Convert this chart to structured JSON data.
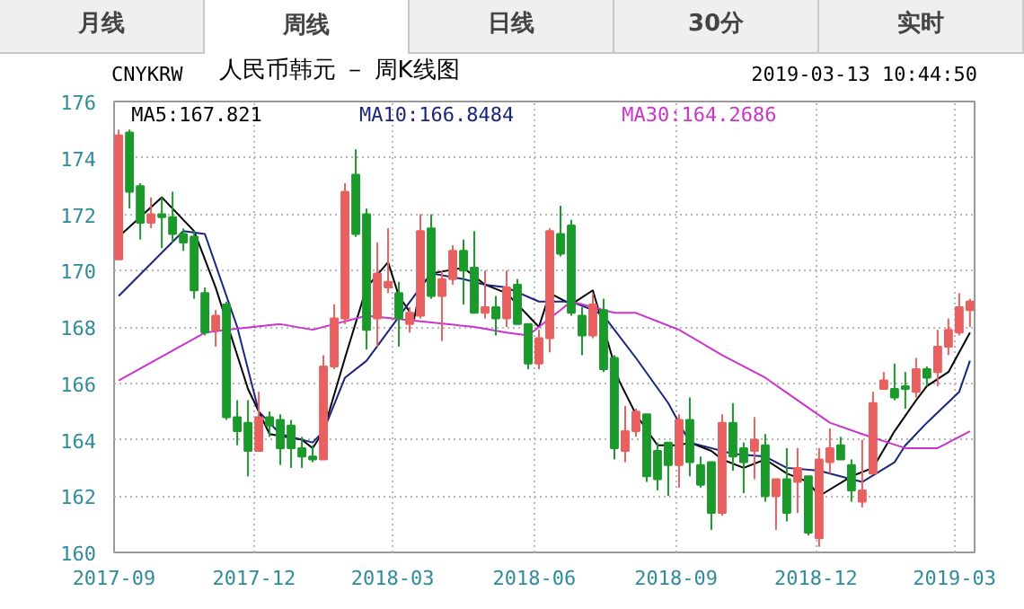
{
  "chart_data": {
    "type": "candlestick",
    "title": "人民币韩元 － 周K线图",
    "subtitle": "CNYKRW",
    "annotations": [
      "2019-03-13 10:44:50",
      "月线",
      "周线",
      "日线",
      "30分",
      "实时"
    ],
    "x": [
      "2017-09-04",
      "2017-09-11",
      "2017-09-18",
      "2017-09-25",
      "2017-10-02",
      "2017-10-09",
      "2017-10-16",
      "2017-10-23",
      "2017-10-30",
      "2017-11-06",
      "2017-11-13",
      "2017-11-20",
      "2017-11-27",
      "2017-12-04",
      "2017-12-11",
      "2017-12-18",
      "2017-12-25",
      "2018-01-01",
      "2018-01-08",
      "2018-01-15",
      "2018-01-22",
      "2018-01-29",
      "2018-02-05",
      "2018-02-12",
      "2018-02-19",
      "2018-02-26",
      "2018-03-05",
      "2018-03-12",
      "2018-03-19",
      "2018-03-26",
      "2018-04-02",
      "2018-04-09",
      "2018-04-16",
      "2018-04-23",
      "2018-04-30",
      "2018-05-07",
      "2018-05-14",
      "2018-05-21",
      "2018-05-28",
      "2018-06-04",
      "2018-06-11",
      "2018-06-18",
      "2018-06-25",
      "2018-07-02",
      "2018-07-09",
      "2018-07-16",
      "2018-07-23",
      "2018-07-30",
      "2018-08-06",
      "2018-08-13",
      "2018-08-20",
      "2018-08-27",
      "2018-09-03",
      "2018-09-10",
      "2018-09-17",
      "2018-09-24",
      "2018-10-01",
      "2018-10-08",
      "2018-10-15",
      "2018-10-22",
      "2018-10-29",
      "2018-11-05",
      "2018-11-12",
      "2018-11-19",
      "2018-11-26",
      "2018-12-03",
      "2018-12-10",
      "2018-12-17",
      "2018-12-24",
      "2018-12-31",
      "2019-01-07",
      "2019-01-14",
      "2019-01-21",
      "2019-01-28",
      "2019-02-04",
      "2019-02-11",
      "2019-02-18",
      "2019-02-25",
      "2019-03-04",
      "2019-03-11"
    ],
    "ohlc": [
      [
        170.4,
        175.0,
        170.4,
        174.8
      ],
      [
        174.9,
        175.0,
        172.2,
        172.8
      ],
      [
        173.0,
        173.1,
        171.1,
        171.7
      ],
      [
        171.7,
        172.6,
        171.5,
        172.0
      ],
      [
        172.0,
        172.6,
        170.8,
        171.9
      ],
      [
        171.9,
        172.8,
        171.0,
        171.3
      ],
      [
        171.3,
        171.5,
        170.7,
        171.0
      ],
      [
        171.2,
        171.4,
        169.0,
        169.3
      ],
      [
        169.2,
        169.4,
        167.7,
        167.8
      ],
      [
        167.9,
        168.6,
        167.3,
        168.4
      ],
      [
        168.8,
        168.9,
        164.7,
        164.8
      ],
      [
        164.8,
        165.4,
        163.8,
        164.3
      ],
      [
        164.6,
        165.4,
        162.7,
        163.6
      ],
      [
        163.6,
        165.7,
        163.6,
        164.8
      ],
      [
        164.8,
        165.0,
        164.1,
        164.5
      ],
      [
        164.7,
        164.9,
        163.1,
        163.7
      ],
      [
        164.5,
        164.7,
        163.0,
        163.7
      ],
      [
        163.7,
        164.1,
        163.0,
        163.4
      ],
      [
        163.4,
        163.8,
        163.2,
        163.3
      ],
      [
        163.3,
        167.0,
        163.3,
        166.6
      ],
      [
        166.6,
        168.8,
        166.5,
        168.3
      ],
      [
        168.3,
        173.1,
        168.1,
        172.8
      ],
      [
        173.4,
        174.3,
        171.2,
        171.3
      ],
      [
        172.0,
        172.2,
        167.2,
        167.9
      ],
      [
        168.3,
        171.0,
        167.3,
        169.9
      ],
      [
        169.4,
        171.5,
        169.2,
        169.6
      ],
      [
        169.2,
        169.6,
        167.3,
        168.3
      ],
      [
        168.1,
        168.7,
        167.8,
        168.5
      ],
      [
        168.4,
        172.0,
        168.3,
        171.4
      ],
      [
        171.5,
        172.0,
        169.0,
        169.1
      ],
      [
        169.1,
        170.0,
        167.5,
        169.7
      ],
      [
        169.7,
        170.9,
        169.5,
        170.7
      ],
      [
        170.7,
        171.1,
        168.8,
        170.0
      ],
      [
        170.1,
        171.4,
        168.5,
        168.5
      ],
      [
        168.5,
        170.0,
        168.3,
        168.7
      ],
      [
        168.7,
        169.1,
        167.7,
        168.3
      ],
      [
        168.3,
        170.0,
        168.0,
        169.4
      ],
      [
        169.5,
        169.7,
        168.1,
        168.1
      ],
      [
        168.1,
        168.1,
        166.5,
        166.7
      ],
      [
        166.7,
        167.9,
        166.5,
        167.6
      ],
      [
        167.6,
        171.5,
        167.1,
        171.4
      ],
      [
        171.3,
        172.3,
        170.5,
        170.6
      ],
      [
        171.6,
        171.8,
        168.4,
        168.5
      ],
      [
        168.4,
        168.7,
        167.0,
        167.7
      ],
      [
        167.7,
        169.2,
        167.6,
        168.8
      ],
      [
        168.6,
        169.0,
        166.4,
        166.5
      ],
      [
        166.9,
        167.0,
        163.3,
        163.7
      ],
      [
        163.6,
        165.2,
        163.2,
        164.3
      ],
      [
        164.3,
        165.1,
        164.1,
        165.0
      ],
      [
        164.9,
        164.9,
        162.5,
        162.7
      ],
      [
        163.6,
        163.9,
        162.2,
        162.6
      ],
      [
        163.9,
        163.9,
        162.0,
        163.1
      ],
      [
        163.1,
        164.9,
        162.3,
        164.7
      ],
      [
        164.7,
        165.5,
        162.7,
        163.2
      ],
      [
        163.1,
        163.4,
        162.3,
        162.4
      ],
      [
        163.2,
        163.2,
        160.8,
        161.4
      ],
      [
        161.4,
        164.9,
        161.3,
        164.6
      ],
      [
        164.6,
        165.3,
        162.9,
        163.4
      ],
      [
        163.7,
        163.9,
        162.1,
        163.2
      ],
      [
        163.6,
        164.8,
        162.6,
        164.0
      ],
      [
        163.8,
        164.2,
        161.8,
        162.0
      ],
      [
        162.0,
        162.6,
        160.8,
        162.6
      ],
      [
        162.6,
        163.7,
        161.1,
        161.4
      ],
      [
        162.5,
        163.7,
        161.4,
        163.0
      ],
      [
        162.7,
        162.7,
        160.6,
        160.7
      ],
      [
        160.5,
        163.7,
        160.2,
        163.3
      ],
      [
        163.2,
        164.4,
        162.8,
        163.7
      ],
      [
        163.8,
        164.1,
        163.3,
        163.3
      ],
      [
        163.1,
        163.3,
        161.8,
        162.2
      ],
      [
        161.8,
        164.0,
        161.6,
        162.2
      ],
      [
        162.8,
        165.7,
        162.8,
        165.3
      ],
      [
        165.8,
        166.4,
        165.8,
        166.1
      ],
      [
        165.8,
        166.7,
        165.4,
        165.5
      ],
      [
        165.9,
        166.4,
        165.1,
        165.8
      ],
      [
        165.7,
        166.9,
        165.5,
        166.5
      ],
      [
        166.5,
        166.6,
        165.9,
        166.2
      ],
      [
        166.4,
        167.9,
        165.9,
        167.3
      ],
      [
        167.3,
        168.3,
        167.0,
        167.9
      ],
      [
        167.8,
        169.2,
        167.7,
        168.7
      ],
      [
        168.6,
        169.0,
        168.0,
        168.9
      ]
    ],
    "colors": [
      "#e8605f",
      "#1a9a2a",
      "#1a9a2a",
      "#e8605f",
      "#1a9a2a",
      "#1a9a2a",
      "#1a9a2a",
      "#1a9a2a",
      "#1a9a2a",
      "#e8605f",
      "#1a9a2a",
      "#1a9a2a",
      "#1a9a2a",
      "#e8605f",
      "#1a9a2a",
      "#1a9a2a",
      "#1a9a2a",
      "#1a9a2a",
      "#1a9a2a",
      "#e8605f",
      "#e8605f",
      "#e8605f",
      "#1a9a2a",
      "#1a9a2a",
      "#e8605f",
      "#e8605f",
      "#1a9a2a",
      "#e8605f",
      "#e8605f",
      "#1a9a2a",
      "#e8605f",
      "#e8605f",
      "#1a9a2a",
      "#1a9a2a",
      "#e8605f",
      "#1a9a2a",
      "#e8605f",
      "#1a9a2a",
      "#1a9a2a",
      "#e8605f",
      "#e8605f",
      "#1a9a2a",
      "#1a9a2a",
      "#1a9a2a",
      "#e8605f",
      "#1a9a2a",
      "#1a9a2a",
      "#e8605f",
      "#e8605f",
      "#1a9a2a",
      "#1a9a2a",
      "#1a9a2a",
      "#e8605f",
      "#1a9a2a",
      "#1a9a2a",
      "#1a9a2a",
      "#e8605f",
      "#1a9a2a",
      "#1a9a2a",
      "#e8605f",
      "#1a9a2a",
      "#e8605f",
      "#1a9a2a",
      "#e8605f",
      "#1a9a2a",
      "#e8605f",
      "#e8605f",
      "#1a9a2a",
      "#1a9a2a",
      "#e8605f",
      "#e8605f",
      "#e8605f",
      "#1a9a2a",
      "#1a9a2a",
      "#e8605f",
      "#1a9a2a",
      "#e8605f",
      "#e8605f",
      "#e8605f",
      "#e8605f"
    ],
    "series": [
      {
        "type": "line",
        "name": "MA5:167.821",
        "color": "#000000",
        "x": [
          "2017-09-04",
          "2017-10-02",
          "2017-10-23",
          "2017-11-06",
          "2017-11-27",
          "2017-12-11",
          "2018-01-01",
          "2018-01-08",
          "2018-01-15",
          "2018-01-29",
          "2018-02-12",
          "2018-02-26",
          "2018-03-05",
          "2018-03-15",
          "2018-03-19",
          "2018-03-26",
          "2018-04-16",
          "2018-04-30",
          "2018-05-14",
          "2018-06-04",
          "2018-06-11",
          "2018-06-25",
          "2018-07-09",
          "2018-07-26",
          "2018-08-06",
          "2018-08-20",
          "2018-09-03",
          "2018-09-10",
          "2018-09-24",
          "2018-10-01",
          "2018-10-15",
          "2018-10-29",
          "2018-11-12",
          "2018-11-26",
          "2018-12-03",
          "2018-12-24",
          "2019-01-07",
          "2019-01-21",
          "2019-02-04",
          "2019-02-11",
          "2019-02-25",
          "2019-03-11"
        ],
        "values": [
          171.2,
          172.6,
          171.4,
          169.4,
          165.8,
          164.2,
          164.0,
          163.7,
          164.3,
          166.9,
          169.4,
          170.3,
          169.1,
          168.3,
          169.4,
          169.9,
          170.1,
          169.5,
          169.2,
          168.0,
          169.2,
          168.8,
          169.3,
          166.1,
          164.9,
          163.8,
          163.8,
          163.9,
          163.6,
          163.3,
          163.0,
          163.3,
          162.8,
          162.5,
          162.0,
          162.7,
          163.0,
          164.3,
          165.4,
          165.9,
          166.4,
          167.8
        ]
      },
      {
        "type": "line",
        "name": "MA10:166.8484",
        "color": "#1a237e",
        "x": [
          "2017-09-04",
          "2017-10-16",
          "2017-10-30",
          "2017-11-20",
          "2017-12-04",
          "2017-12-18",
          "2018-01-08",
          "2018-01-15",
          "2018-01-29",
          "2018-02-12",
          "2018-03-19",
          "2018-03-26",
          "2018-04-16",
          "2018-04-30",
          "2018-05-14",
          "2018-06-04",
          "2018-06-25",
          "2018-07-09",
          "2018-07-16",
          "2018-08-06",
          "2018-08-27",
          "2018-09-03",
          "2018-09-10",
          "2018-10-08",
          "2018-10-29",
          "2018-11-12",
          "2018-12-03",
          "2018-12-24",
          "2018-12-31",
          "2019-01-21",
          "2019-01-28",
          "2019-02-11",
          "2019-03-04",
          "2019-03-11"
        ],
        "values": [
          169.1,
          171.4,
          171.3,
          168.0,
          165.0,
          164.2,
          163.9,
          164.3,
          166.2,
          166.8,
          169.4,
          169.9,
          169.7,
          169.5,
          169.4,
          168.9,
          168.9,
          168.6,
          168.4,
          166.9,
          165.3,
          164.6,
          163.9,
          163.5,
          163.4,
          163.0,
          162.9,
          162.6,
          162.5,
          163.2,
          163.8,
          164.6,
          165.7,
          166.8
        ]
      },
      {
        "type": "line",
        "name": "MA30:164.2686",
        "color": "#cc33cc",
        "x": [
          "2017-09-04",
          "2017-10-30",
          "2017-11-13",
          "2017-12-18",
          "2018-01-08",
          "2018-02-12",
          "2018-03-19",
          "2018-04-23",
          "2018-05-14",
          "2018-05-28",
          "2018-06-11",
          "2018-06-25",
          "2018-07-23",
          "2018-08-06",
          "2018-08-20",
          "2018-09-03",
          "2018-10-01",
          "2018-10-29",
          "2018-11-19",
          "2018-12-10",
          "2018-12-31",
          "2019-01-28",
          "2019-02-18",
          "2019-03-11"
        ],
        "values": [
          166.1,
          167.8,
          167.9,
          168.1,
          167.9,
          168.4,
          168.2,
          168.0,
          167.8,
          167.7,
          168.3,
          168.9,
          168.5,
          168.5,
          168.2,
          167.9,
          167.0,
          166.2,
          165.4,
          164.6,
          164.2,
          163.7,
          163.7,
          164.3
        ]
      }
    ],
    "xlim": [
      "2017-09-01",
      "2019-03-14"
    ],
    "xticks": [
      {
        "value": "2017-09-01",
        "label": "2017-09"
      },
      {
        "value": "2017-12-01",
        "label": "2017-12"
      },
      {
        "value": "2018-03-01",
        "label": "2018-03"
      },
      {
        "value": "2018-06-01",
        "label": "2018-06"
      },
      {
        "value": "2018-09-01",
        "label": "2018-09"
      },
      {
        "value": "2018-12-01",
        "label": "2018-12"
      },
      {
        "value": "2019-03-01",
        "label": "2019-03"
      }
    ],
    "ylim": [
      160,
      176
    ],
    "yticks": [
      160,
      162,
      164,
      166,
      168,
      170,
      172,
      174,
      176
    ],
    "grid": true,
    "line_style": "solid"
  }
}
